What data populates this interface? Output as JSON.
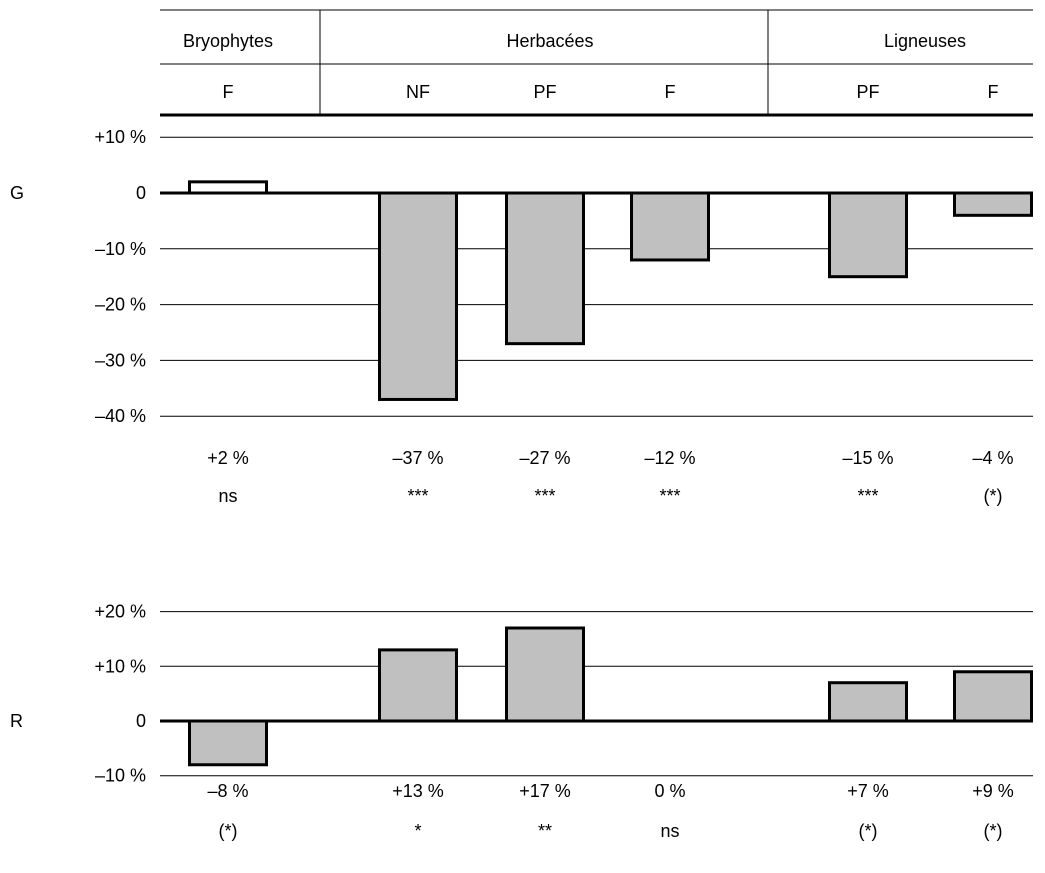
{
  "header": {
    "groups": [
      "Bryophytes",
      "Herbacées",
      "Ligneuses"
    ],
    "subgroups": [
      "F",
      "NF",
      "PF",
      "F",
      "PF",
      "F"
    ]
  },
  "colors": {
    "bar_fill": "#c0c0c0",
    "bar_stroke": "#000000",
    "positive_open_fill": "#ffffff"
  },
  "chart_data": [
    {
      "type": "bar",
      "row_label": "G",
      "categories": [
        "Bryophytes F",
        "Herbacées NF",
        "Herbacées PF",
        "Herbacées F",
        "Ligneuses PF",
        "Ligneuses F"
      ],
      "values": [
        2,
        -37,
        -27,
        -12,
        -15,
        -4
      ],
      "value_labels": [
        "+2 %",
        "–37 %",
        "–27 %",
        "–12 %",
        "–15 %",
        "–4 %"
      ],
      "significance": [
        "ns",
        "***",
        "***",
        "***",
        "***",
        "(*)"
      ],
      "yticks": [
        "+10 %",
        "0",
        "–10 %",
        "–20 %",
        "–30 %",
        "–40 %"
      ],
      "ytick_values": [
        10,
        0,
        -10,
        -20,
        -30,
        -40
      ],
      "ylim": [
        -40,
        10
      ],
      "grid": true
    },
    {
      "type": "bar",
      "row_label": "R",
      "categories": [
        "Bryophytes F",
        "Herbacées NF",
        "Herbacées PF",
        "Herbacées F",
        "Ligneuses PF",
        "Ligneuses F"
      ],
      "values": [
        -8,
        13,
        17,
        0,
        7,
        9
      ],
      "value_labels": [
        "–8 %",
        "+13 %",
        "+17 %",
        "0 %",
        "+7 %",
        "+9 %"
      ],
      "significance": [
        "(*)",
        "*",
        "**",
        "ns",
        "(*)",
        "(*)"
      ],
      "yticks": [
        "+20 %",
        "+10 %",
        "0",
        "–10 %"
      ],
      "ytick_values": [
        20,
        10,
        0,
        -10
      ],
      "ylim": [
        -10,
        20
      ],
      "grid": true
    }
  ]
}
